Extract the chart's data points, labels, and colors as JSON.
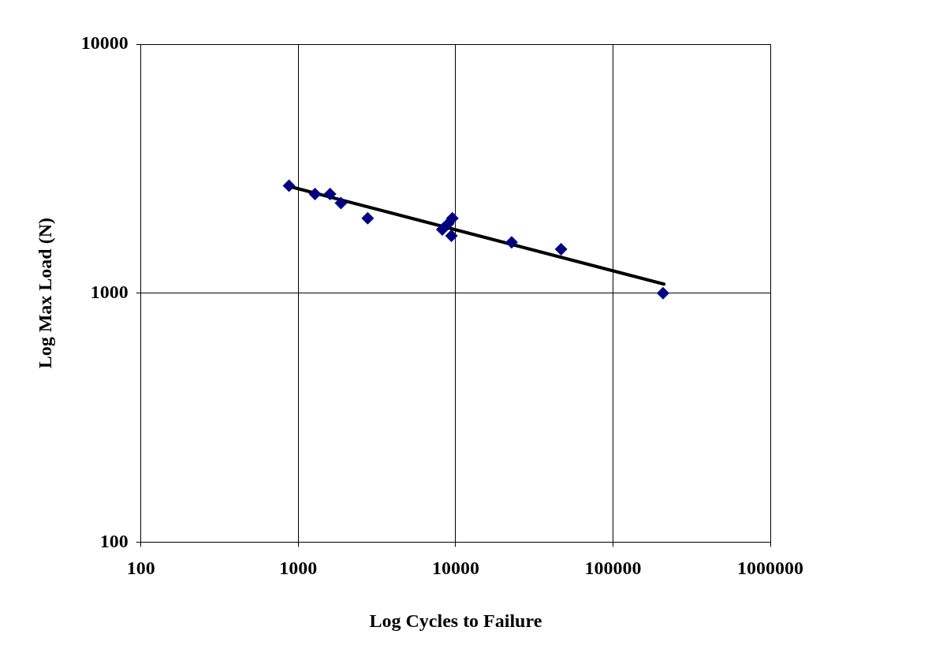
{
  "chart_data": {
    "type": "scatter",
    "xlabel": "Log Cycles to Failure",
    "ylabel": "Log Max Load (N)",
    "log": "xy",
    "grid": true,
    "legend": false,
    "marker": "diamond",
    "xlim": [
      100,
      1000000
    ],
    "ylim": [
      100,
      10000
    ],
    "xticks": [
      100,
      1000,
      10000,
      100000,
      1000000
    ],
    "yticks": [
      100,
      1000,
      10000
    ],
    "series": [
      {
        "type": "scatter",
        "color": "#000080",
        "x": [
          873,
          1276,
          1592,
          1866,
          2762,
          8224,
          8955,
          9530,
          9400,
          22700,
          46800,
          208000
        ],
        "values": [
          2700,
          2500,
          2500,
          2300,
          2000,
          1800,
          1900,
          2000,
          1700,
          1600,
          1500,
          1000
        ]
      },
      {
        "type": "line",
        "color": "#000000",
        "marker": "none",
        "x": [
          873,
          211000
        ],
        "values": [
          2685,
          1087
        ]
      }
    ]
  }
}
